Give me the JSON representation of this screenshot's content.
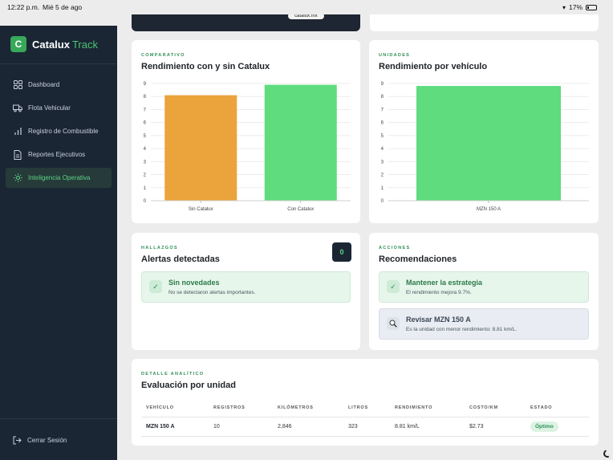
{
  "status_bar": {
    "time": "12:22 p.m.",
    "date": "Mié 5 de ago",
    "battery": "17%"
  },
  "browser": {
    "url": "catalux.mx"
  },
  "brand": {
    "logo_letter": "C",
    "name": "Catalux",
    "name_accent": "Track"
  },
  "nav": {
    "items": [
      {
        "label": "Dashboard",
        "icon": "grid-icon",
        "active": false
      },
      {
        "label": "Flota Vehicular",
        "icon": "truck-icon",
        "active": false
      },
      {
        "label": "Registro de Combustible",
        "icon": "bar-chart-icon",
        "active": false
      },
      {
        "label": "Reportes Ejecutivos",
        "icon": "document-icon",
        "active": false
      },
      {
        "label": "Inteligencia Operativa",
        "icon": "sun-icon",
        "active": true
      }
    ],
    "logout": "Cerrar Sesión"
  },
  "comparison_card": {
    "eyebrow": "COMPARATIVO",
    "title": "Rendimiento con y sin Catalux"
  },
  "units_card": {
    "eyebrow": "UNIDADES",
    "title": "Rendimiento por vehículo"
  },
  "chart_data": [
    {
      "type": "bar",
      "title": "Rendimiento con y sin Catalux",
      "categories": [
        "Sin Catalux",
        "Con Catalux"
      ],
      "values": [
        8.1,
        8.9
      ],
      "colors": [
        "#eba43b",
        "#5edc7e"
      ],
      "ylim": [
        0,
        9
      ],
      "yticks": [
        0,
        1,
        2,
        3,
        4,
        5,
        6,
        7,
        8,
        9
      ],
      "grid": true
    },
    {
      "type": "bar",
      "title": "Rendimiento por vehículo",
      "categories": [
        "MZN 150 A"
      ],
      "values": [
        8.81
      ],
      "colors": [
        "#5edc7e"
      ],
      "ylim": [
        0,
        9
      ],
      "yticks": [
        0,
        1,
        2,
        3,
        4,
        5,
        6,
        7,
        8,
        9
      ],
      "grid": true
    }
  ],
  "alerts": {
    "eyebrow": "HALLAZGOS",
    "title": "Alertas detectadas",
    "count": "0",
    "notice_title": "Sin novedades",
    "notice_desc": "No se detectaron alertas importantes."
  },
  "recommendations": {
    "eyebrow": "ACCIONES",
    "title": "Recomendaciones",
    "items": [
      {
        "title": "Mantener la estrategia",
        "desc": "El rendimiento mejora 9.7%.",
        "icon": "check-icon"
      },
      {
        "title": "Revisar MZN 150 A",
        "desc": "Es la unidad con menor rendimiento: 8.81 km/L.",
        "icon": "magnifier-icon"
      }
    ]
  },
  "detail": {
    "eyebrow": "DETALLE ANALÍTICO",
    "title": "Evaluación por unidad",
    "columns": [
      "VEHÍCULO",
      "REGISTROS",
      "KILÓMETROS",
      "LITROS",
      "RENDIMIENTO",
      "COSTO/KM",
      "ESTADO"
    ],
    "rows": [
      [
        "MZN 150 A",
        "10",
        "2,846",
        "323",
        "8.81 km/L",
        "$2.73",
        "Óptimo"
      ]
    ]
  }
}
